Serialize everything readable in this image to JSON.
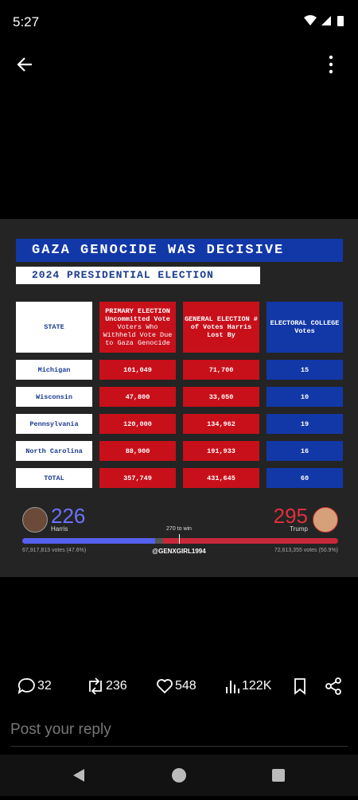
{
  "status_bar": {
    "time": "5:27"
  },
  "post_image": {
    "title": "GAZA GENOCIDE WAS DECISIVE",
    "subtitle": "2024 PRESIDENTIAL ELECTION",
    "table": {
      "header": [
        "STATE",
        [
          "PRIMARY ELECTION Uncommitted Vote",
          "Voters Who Withheld Vote Due to Gaza Genocide"
        ],
        "GENERAL ELECTION # of Votes Harris Lost By",
        "ELECTORAL COLLEGE Votes"
      ],
      "rows": [
        [
          "Michigan",
          "101,049",
          "71,700",
          "15"
        ],
        [
          "Wisconsin",
          "47,800",
          "33,050",
          "10"
        ],
        [
          "Pennsylvania",
          "120,000",
          "134,962",
          "19"
        ],
        [
          "North Carolina",
          "88,900",
          "191,933",
          "16"
        ],
        [
          "TOTAL",
          "357,749",
          "431,645",
          "60"
        ]
      ]
    },
    "results": {
      "left": {
        "votes": "226",
        "name": "Harris",
        "popular": "67,917,813 votes (47.6%)"
      },
      "right": {
        "votes": "295",
        "name": "Trump",
        "popular": "72,613,355 votes (50.9%)"
      },
      "threshold": "270 to win",
      "credit": "@GENXGIRL1994"
    }
  },
  "actions": {
    "replies": "32",
    "reposts": "236",
    "likes": "548",
    "views": "122K"
  },
  "reply_placeholder": "Post your reply"
}
